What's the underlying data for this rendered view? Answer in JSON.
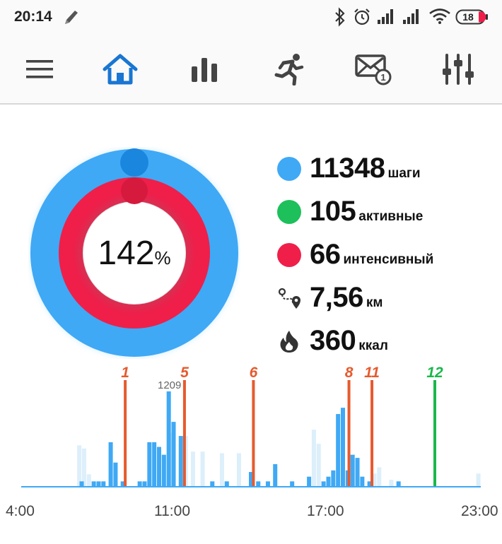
{
  "status_bar": {
    "time": "20:14",
    "battery": "18",
    "icons": [
      "bluetooth-icon",
      "alarm-icon",
      "signal-icon",
      "signal-icon",
      "wifi-icon",
      "battery-icon"
    ]
  },
  "toolbar": {
    "items": [
      {
        "name": "menu-icon"
      },
      {
        "name": "home-icon",
        "active": true
      },
      {
        "name": "stats-icon"
      },
      {
        "name": "activity-icon"
      },
      {
        "name": "messages-icon",
        "badge": "1"
      },
      {
        "name": "settings-icon"
      }
    ]
  },
  "colors": {
    "steps": "#3fa9f5",
    "active": "#1dc05a",
    "intense": "#ef1f4a",
    "accent": "#1976d2",
    "marker": "#e65a2e",
    "marker_green": "#18b84a"
  },
  "progress": {
    "value": "142",
    "unit": "%"
  },
  "stats": [
    {
      "value": "11348",
      "unit": "шаги",
      "color": "#3fa9f5"
    },
    {
      "value": "105",
      "unit": "активные",
      "color": "#1dc05a"
    },
    {
      "value": "66",
      "unit": "интенсивный",
      "color": "#ef1f4a"
    },
    {
      "value": "7,56",
      "unit": "км",
      "icon": "route-icon"
    },
    {
      "value": "360",
      "unit": "ккал",
      "icon": "flame-icon"
    }
  ],
  "chart_data": {
    "type": "bar",
    "x_tick_labels": [
      "4:00",
      "11:00",
      "17:00",
      "23:00"
    ],
    "x_range": [
      4,
      23
    ],
    "peak_label": "1209",
    "bars": [
      {
        "x": 6.4,
        "v": 520,
        "light": true
      },
      {
        "x": 6.6,
        "v": 480,
        "light": true
      },
      {
        "x": 6.8,
        "v": 150,
        "light": true
      },
      {
        "x": 6.5,
        "v": 60
      },
      {
        "x": 7.0,
        "v": 60
      },
      {
        "x": 7.2,
        "v": 60
      },
      {
        "x": 7.4,
        "v": 60
      },
      {
        "x": 7.7,
        "v": 560
      },
      {
        "x": 7.9,
        "v": 300
      },
      {
        "x": 8.2,
        "v": 60
      },
      {
        "x": 8.9,
        "v": 60
      },
      {
        "x": 9.1,
        "v": 60
      },
      {
        "x": 9.3,
        "v": 560
      },
      {
        "x": 9.5,
        "v": 560
      },
      {
        "x": 9.7,
        "v": 500
      },
      {
        "x": 9.9,
        "v": 400
      },
      {
        "x": 10.1,
        "v": 1209
      },
      {
        "x": 10.3,
        "v": 820
      },
      {
        "x": 10.6,
        "v": 640
      },
      {
        "x": 10.2,
        "v": 680,
        "light": true
      },
      {
        "x": 10.8,
        "v": 640,
        "light": true
      },
      {
        "x": 11.1,
        "v": 440,
        "light": true
      },
      {
        "x": 11.5,
        "v": 440,
        "light": true
      },
      {
        "x": 11.9,
        "v": 60
      },
      {
        "x": 12.5,
        "v": 60
      },
      {
        "x": 12.3,
        "v": 420,
        "light": true
      },
      {
        "x": 13.0,
        "v": 420,
        "light": true
      },
      {
        "x": 13.5,
        "v": 180
      },
      {
        "x": 13.8,
        "v": 60
      },
      {
        "x": 14.5,
        "v": 280
      },
      {
        "x": 14.2,
        "v": 60
      },
      {
        "x": 15.2,
        "v": 60
      },
      {
        "x": 15.9,
        "v": 120
      },
      {
        "x": 16.1,
        "v": 720,
        "light": true
      },
      {
        "x": 16.3,
        "v": 540,
        "light": true
      },
      {
        "x": 16.5,
        "v": 60
      },
      {
        "x": 16.7,
        "v": 120
      },
      {
        "x": 16.9,
        "v": 200
      },
      {
        "x": 17.1,
        "v": 920
      },
      {
        "x": 17.3,
        "v": 1000
      },
      {
        "x": 17.5,
        "v": 200
      },
      {
        "x": 17.7,
        "v": 400
      },
      {
        "x": 17.9,
        "v": 360
      },
      {
        "x": 18.1,
        "v": 120
      },
      {
        "x": 18.4,
        "v": 60
      },
      {
        "x": 18.6,
        "v": 160,
        "light": true
      },
      {
        "x": 18.8,
        "v": 240,
        "light": true
      },
      {
        "x": 19.3,
        "v": 80,
        "light": true
      },
      {
        "x": 19.6,
        "v": 60
      },
      {
        "x": 22.9,
        "v": 160,
        "light": true
      }
    ],
    "markers": [
      {
        "label": "1",
        "x": 8.3,
        "color": "#e65a2e"
      },
      {
        "label": "5",
        "x": 10.75,
        "color": "#e65a2e"
      },
      {
        "label": "6",
        "x": 13.6,
        "color": "#e65a2e"
      },
      {
        "label": "8",
        "x": 17.55,
        "color": "#e65a2e"
      },
      {
        "label": "11",
        "x": 18.5,
        "color": "#e65a2e"
      },
      {
        "label": "12",
        "x": 21.1,
        "color": "#18b84a"
      }
    ]
  }
}
